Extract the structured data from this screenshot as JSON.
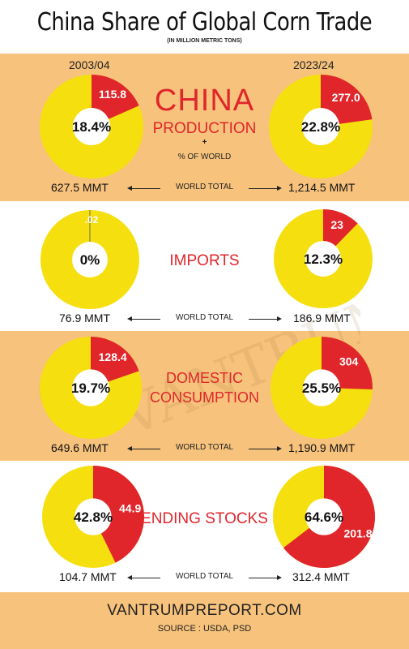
{
  "title": "China Share of Global Corn Trade",
  "subtitle": "(IN MILLION METRIC TONS)",
  "periods": {
    "left": "2003/04",
    "right": "2023/24"
  },
  "colors": {
    "china": "#e0262b",
    "world": "#f6df0f",
    "band": "#f7c27c"
  },
  "sections": {
    "production": {
      "label_line1": "CHINA",
      "label_line2": "PRODUCTION",
      "plus": "+",
      "note": "% OF WORLD",
      "world_total_label": "WORLD TOTAL",
      "left_total": "627.5 MMT",
      "right_total": "1,214.5 MMT"
    },
    "imports": {
      "label": "IMPORTS",
      "world_total_label": "WORLD TOTAL",
      "left_total": "76.9 MMT",
      "right_total": "186.9 MMT"
    },
    "consumption": {
      "label_line1": "DOMESTIC",
      "label_line2": "CONSUMPTION",
      "world_total_label": "WORLD TOTAL",
      "left_total": "649.6 MMT",
      "right_total": "1,190.9 MMT"
    },
    "stocks": {
      "label": "ENDING STOCKS",
      "world_total_label": "WORLD TOTAL",
      "left_total": "104.7 MMT",
      "right_total": "312.4 MMT"
    }
  },
  "footer": {
    "site": "VANTRUMPREPORT.COM",
    "source": "SOURCE : USDA, PSD"
  },
  "chart_data": [
    {
      "type": "pie",
      "title": "PRODUCTION 2003/04",
      "china_value": "115.8",
      "center_label": "18.4%",
      "china_share": 0.184,
      "world_total": "627.5 MMT"
    },
    {
      "type": "pie",
      "title": "PRODUCTION 2023/24",
      "china_value": "277.0",
      "center_label": "22.8%",
      "china_share": 0.228,
      "world_total": "1,214.5 MMT"
    },
    {
      "type": "pie",
      "title": "IMPORTS 2003/04",
      "china_value": ".02",
      "center_label": "0%",
      "china_share": 0.0,
      "world_total": "76.9 MMT"
    },
    {
      "type": "pie",
      "title": "IMPORTS 2023/24",
      "china_value": "23",
      "center_label": "12.3%",
      "china_share": 0.123,
      "world_total": "186.9 MMT"
    },
    {
      "type": "pie",
      "title": "DOMESTIC CONSUMPTION 2003/04",
      "china_value": "128.4",
      "center_label": "19.7%",
      "china_share": 0.197,
      "world_total": "649.6 MMT"
    },
    {
      "type": "pie",
      "title": "DOMESTIC CONSUMPTION 2023/24",
      "china_value": "304",
      "center_label": "25.5%",
      "china_share": 0.255,
      "world_total": "1,190.9 MMT"
    },
    {
      "type": "pie",
      "title": "ENDING STOCKS 2003/04",
      "china_value": "44.9",
      "center_label": "42.8%",
      "china_share": 0.428,
      "world_total": "104.7 MMT"
    },
    {
      "type": "pie",
      "title": "ENDING STOCKS 2023/24",
      "china_value": "201.8",
      "center_label": "64.6%",
      "china_share": 0.646,
      "world_total": "312.4 MMT"
    }
  ]
}
